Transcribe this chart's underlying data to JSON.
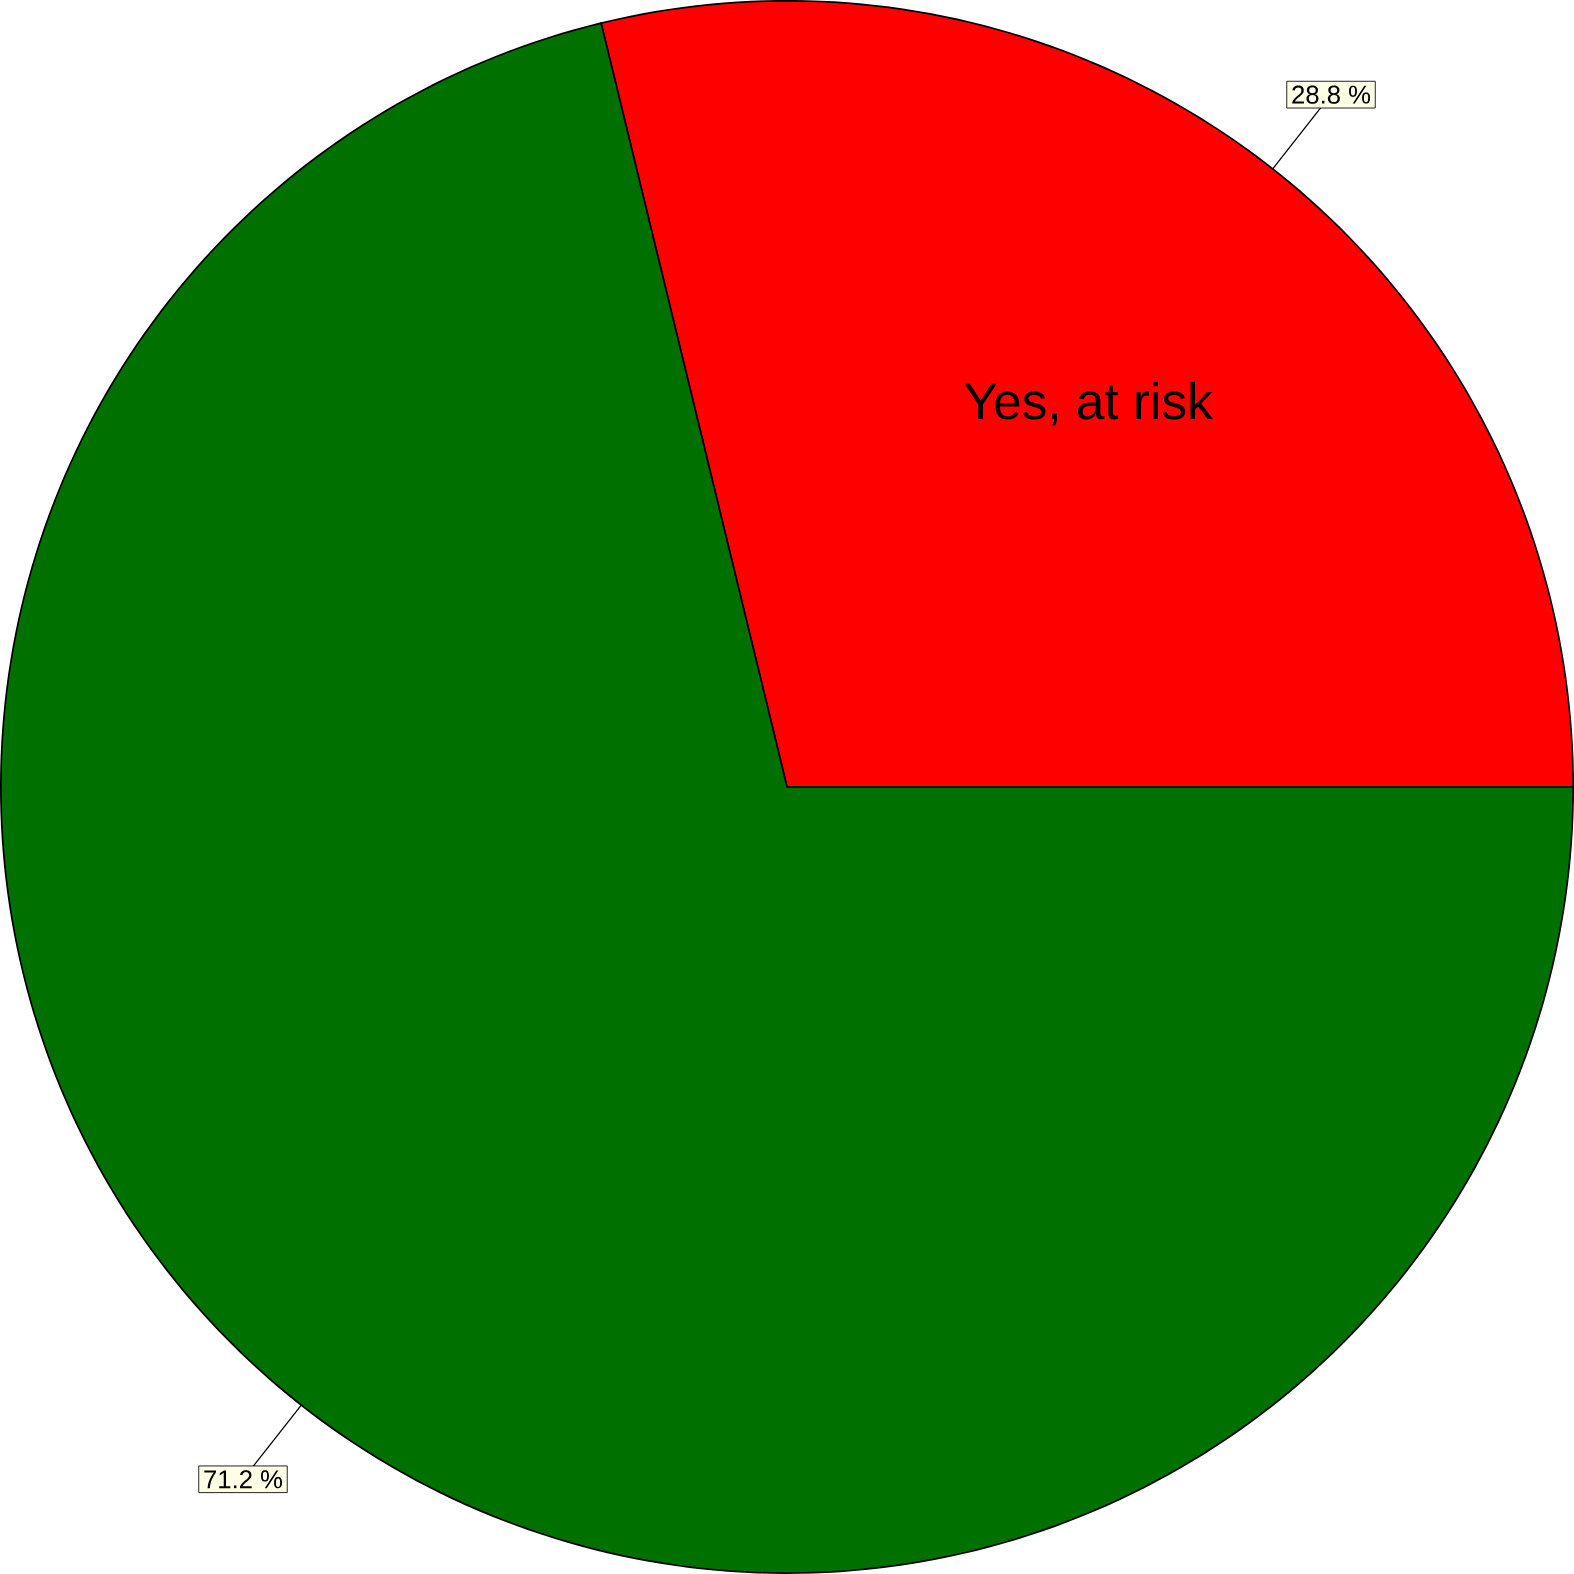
{
  "chart_data": {
    "type": "pie",
    "categories": [
      "Yes, at risk",
      null
    ],
    "values": [
      28.8,
      71.2
    ],
    "colors": [
      "#ff0000",
      "#007000"
    ],
    "value_labels": [
      "28.8 %",
      "71.2 %"
    ]
  }
}
